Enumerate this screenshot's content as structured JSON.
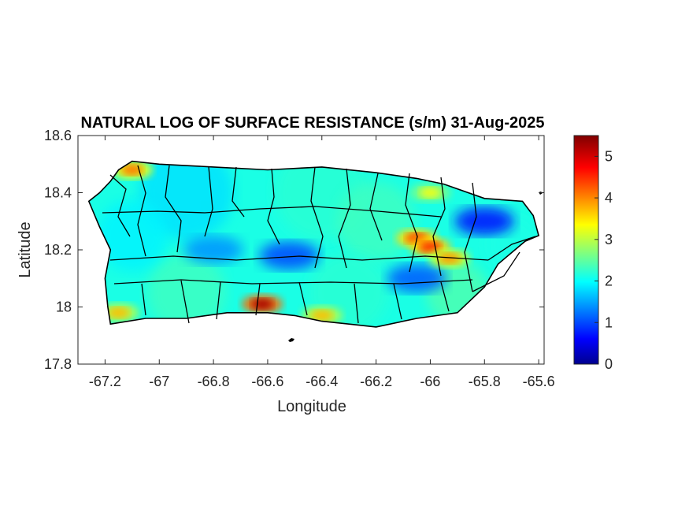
{
  "chart_data": {
    "type": "heatmap",
    "title": "NATURAL LOG OF SURFACE RESISTANCE (s/m) 31-Aug-2025",
    "xlabel": "Longitude",
    "ylabel": "Latitude",
    "xlim": [
      -67.3,
      -65.58
    ],
    "ylim": [
      17.8,
      18.6
    ],
    "x_ticks": [
      "-67.2",
      "-67",
      "-66.8",
      "-66.6",
      "-66.4",
      "-66.2",
      "-66",
      "-65.8",
      "-65.6"
    ],
    "x_tick_values": [
      -67.2,
      -67.0,
      -66.8,
      -66.6,
      -66.4,
      -66.2,
      -66.0,
      -65.8,
      -65.6
    ],
    "y_ticks": [
      "18.6",
      "18.4",
      "18.2",
      "18",
      "17.8"
    ],
    "y_tick_values": [
      18.6,
      18.4,
      18.2,
      18.0,
      17.8
    ],
    "colorbar": {
      "colormap": "jet",
      "range": [
        0,
        5.5
      ],
      "ticks": [
        "0",
        "1",
        "2",
        "3",
        "4",
        "5"
      ],
      "tick_values": [
        0,
        1,
        2,
        3,
        4,
        5
      ]
    },
    "grid": false,
    "island_outline": [
      [
        -67.26,
        18.37
      ],
      [
        -67.22,
        18.4
      ],
      [
        -67.18,
        18.44
      ],
      [
        -67.15,
        18.48
      ],
      [
        -67.1,
        18.51
      ],
      [
        -67.0,
        18.5
      ],
      [
        -66.8,
        18.49
      ],
      [
        -66.6,
        18.48
      ],
      [
        -66.4,
        18.49
      ],
      [
        -66.2,
        18.47
      ],
      [
        -66.05,
        18.45
      ],
      [
        -65.95,
        18.43
      ],
      [
        -65.8,
        18.38
      ],
      [
        -65.66,
        18.37
      ],
      [
        -65.62,
        18.32
      ],
      [
        -65.6,
        18.25
      ],
      [
        -65.65,
        18.23
      ],
      [
        -65.75,
        18.15
      ],
      [
        -65.8,
        18.07
      ],
      [
        -65.9,
        17.98
      ],
      [
        -66.05,
        17.96
      ],
      [
        -66.2,
        17.93
      ],
      [
        -66.3,
        17.94
      ],
      [
        -66.4,
        17.95
      ],
      [
        -66.5,
        17.97
      ],
      [
        -66.6,
        17.98
      ],
      [
        -66.75,
        17.98
      ],
      [
        -66.9,
        17.96
      ],
      [
        -67.05,
        17.96
      ],
      [
        -67.18,
        17.94
      ],
      [
        -67.19,
        18.0
      ],
      [
        -67.2,
        18.1
      ],
      [
        -67.18,
        18.2
      ],
      [
        -67.22,
        18.28
      ],
      [
        -67.26,
        18.37
      ]
    ],
    "hotspots": [
      {
        "lon": -66.62,
        "lat": 18.01,
        "value": 5.3
      },
      {
        "lon": -66.05,
        "lat": 18.24,
        "value": 4.5
      },
      {
        "lon": -66.0,
        "lat": 18.21,
        "value": 4.6
      },
      {
        "lon": -67.1,
        "lat": 18.48,
        "value": 4.2
      },
      {
        "lon": -67.15,
        "lat": 17.98,
        "value": 3.8
      },
      {
        "lon": -66.4,
        "lat": 17.97,
        "value": 3.8
      },
      {
        "lon": -65.93,
        "lat": 18.17,
        "value": 4.0
      },
      {
        "lon": -66.0,
        "lat": 18.4,
        "value": 3.4
      }
    ],
    "lowspots": [
      {
        "lon": -65.8,
        "lat": 18.3,
        "value": 0.8
      },
      {
        "lon": -66.52,
        "lat": 18.18,
        "value": 1.1
      },
      {
        "lon": -66.05,
        "lat": 18.1,
        "value": 1.2
      },
      {
        "lon": -66.8,
        "lat": 18.2,
        "value": 1.5
      }
    ]
  }
}
